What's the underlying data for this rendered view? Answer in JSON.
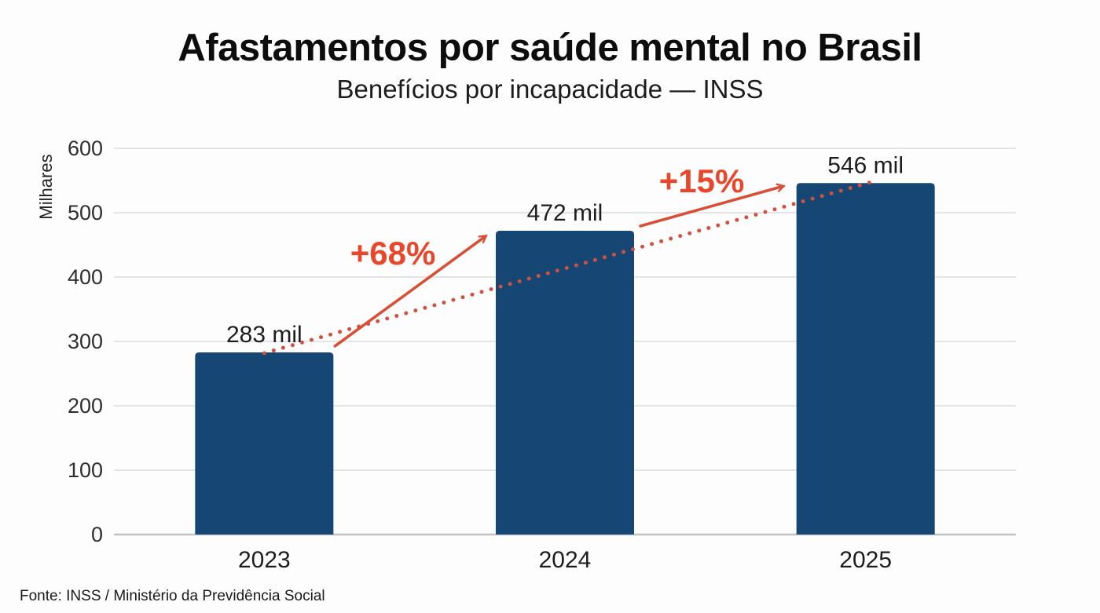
{
  "title": "Afastamentos por saúde mental no Brasil",
  "subtitle": "Benefícios por incapacidade — INSS",
  "source": "Fonte: INSS / Ministério da Previdência Social",
  "colors": {
    "bar": "#154674",
    "accent": "#e8472b",
    "arrow": "#d94f35",
    "dotted": "#cf5240",
    "grid": "#e4e4e4",
    "axis": "#c2c2c2",
    "tick_text": "#2e2e2e",
    "label_text": "#1d1d1d",
    "background": "#fdfdfd"
  },
  "chart_data": {
    "type": "bar",
    "title": "Afastamentos por saúde mental no Brasil",
    "subtitle": "Benefícios por incapacidade — INSS",
    "categories": [
      "2023",
      "2024",
      "2025"
    ],
    "values": [
      283,
      472,
      546
    ],
    "value_labels": [
      "283 mil",
      "472 mil",
      "546 mil"
    ],
    "unit": "mil (thousands)",
    "xlabel": "",
    "ylabel": "Milhares",
    "ylim": [
      0,
      600
    ],
    "yticks": [
      0,
      100,
      200,
      300,
      400,
      500,
      600
    ],
    "grid": "horizontal",
    "legend": "none",
    "annotations": [
      {
        "label": "+68%",
        "from": "2023",
        "to": "2024",
        "style": "solid arrow, accent color"
      },
      {
        "label": "+15%",
        "from": "2024",
        "to": "2025",
        "style": "solid arrow, accent color"
      }
    ],
    "trendline": {
      "style": "dotted",
      "from": {
        "x": "2023",
        "y": 283
      },
      "to": {
        "x": "2025",
        "y": 546
      }
    },
    "source": "Fonte: INSS / Ministério da Previdência Social"
  }
}
